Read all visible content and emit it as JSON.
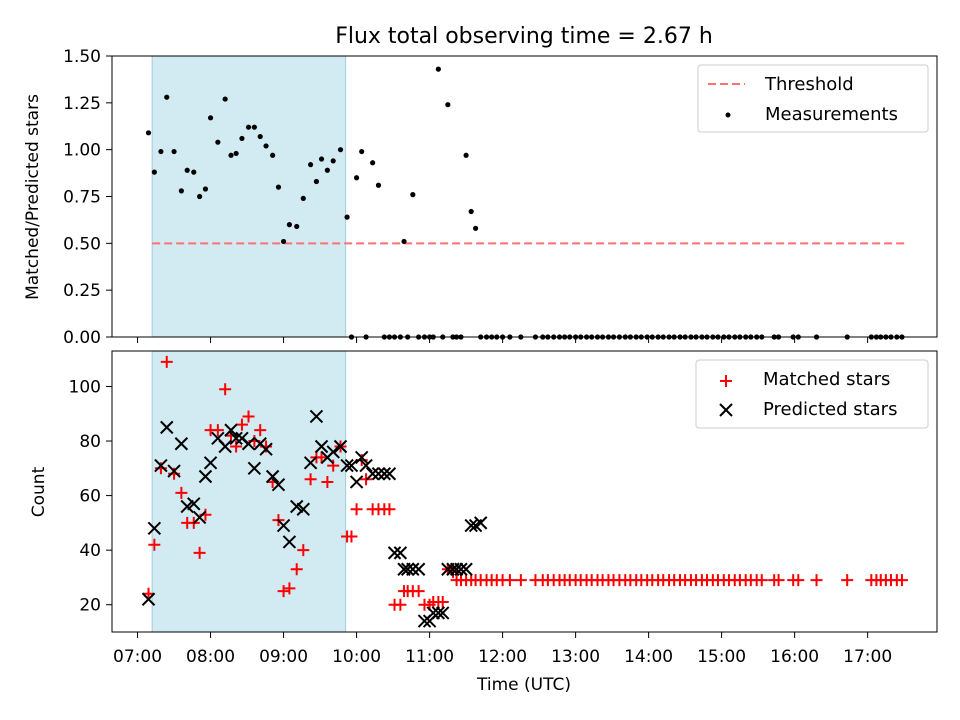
{
  "colors": {
    "shade": "#add8e6",
    "threshold": "#ff6f6f",
    "measurement": "#000000",
    "matched": "#ff0000",
    "predicted": "#000000"
  },
  "chart_data": [
    {
      "type": "scatter",
      "title": "Flux total observing time = 2.67 h",
      "xlabel": "",
      "ylabel": "Matched/Predicted stars",
      "ylim": [
        0,
        1.5
      ],
      "yticks": [
        "0.00",
        "0.25",
        "0.50",
        "0.75",
        "1.00",
        "1.25",
        "1.50"
      ],
      "shaded_span_hours": [
        7.2,
        9.85
      ],
      "threshold": {
        "name": "Threshold",
        "value": 0.5,
        "x_range_hours": [
          7.2,
          17.5
        ]
      },
      "legend": {
        "position": "top-right",
        "entries": [
          "Threshold",
          "Measurements"
        ]
      },
      "series": [
        {
          "name": "Measurements",
          "x_hours": [
            7.15,
            7.23,
            7.32,
            7.4,
            7.5,
            7.6,
            7.68,
            7.77,
            7.85,
            7.93,
            8.0,
            8.1,
            8.2,
            8.28,
            8.35,
            8.43,
            8.52,
            8.6,
            8.68,
            8.76,
            8.85,
            8.93,
            9.0,
            9.08,
            9.18,
            9.27,
            9.37,
            9.45,
            9.52,
            9.6,
            9.68,
            9.78,
            9.87,
            9.93,
            10.0,
            10.07,
            10.13,
            10.22,
            10.3,
            10.38,
            10.45,
            10.52,
            10.6,
            10.65,
            10.7,
            10.77,
            10.85,
            10.93,
            11.0,
            11.05,
            11.12,
            11.18,
            11.25,
            11.32,
            11.37,
            11.43,
            11.5,
            11.57,
            11.63,
            11.7,
            11.78,
            11.85,
            11.92,
            12.0,
            12.1,
            12.25,
            12.45,
            12.55,
            12.62,
            12.7,
            12.78,
            12.85,
            12.92,
            13.0,
            13.07,
            13.15,
            13.22,
            13.3,
            13.37,
            13.45,
            13.52,
            13.6,
            13.68,
            13.75,
            13.83,
            13.9,
            13.98,
            14.05,
            14.13,
            14.2,
            14.28,
            14.35,
            14.43,
            14.5,
            14.58,
            14.65,
            14.73,
            14.8,
            14.88,
            14.95,
            15.03,
            15.1,
            15.18,
            15.25,
            15.33,
            15.4,
            15.48,
            15.55,
            15.72,
            15.78,
            15.98,
            16.05,
            16.3,
            16.72,
            17.05,
            17.12,
            17.18,
            17.25,
            17.32,
            17.4,
            17.47
          ],
          "y": [
            1.09,
            0.88,
            0.99,
            1.28,
            0.99,
            0.78,
            0.89,
            0.88,
            0.75,
            0.79,
            1.17,
            1.04,
            1.27,
            0.97,
            0.98,
            1.06,
            1.12,
            1.12,
            1.07,
            1.02,
            0.97,
            0.8,
            0.51,
            0.6,
            0.59,
            0.74,
            0.92,
            0.83,
            0.95,
            0.89,
            0.94,
            1.0,
            0.64,
            0.0,
            0.85,
            0.99,
            0.0,
            0.93,
            0.81,
            0.0,
            0.0,
            0.0,
            0.0,
            0.51,
            0.0,
            0.76,
            0.0,
            0.0,
            0.0,
            0.0,
            1.43,
            0.0,
            1.24,
            0.0,
            0.0,
            0.0,
            0.97,
            0.67,
            0.58,
            0.0,
            0.0,
            0.0,
            0.0,
            0.0,
            0.0,
            0.0,
            0.0,
            0.0,
            0.0,
            0.0,
            0.0,
            0.0,
            0.0,
            0.0,
            0.0,
            0.0,
            0.0,
            0.0,
            0.0,
            0.0,
            0.0,
            0.0,
            0.0,
            0.0,
            0.0,
            0.0,
            0.0,
            0.0,
            0.0,
            0.0,
            0.0,
            0.0,
            0.0,
            0.0,
            0.0,
            0.0,
            0.0,
            0.0,
            0.0,
            0.0,
            0.0,
            0.0,
            0.0,
            0.0,
            0.0,
            0.0,
            0.0,
            0.0,
            0.0,
            0.0,
            0.0,
            0.0,
            0.0,
            0.0,
            0.0,
            0.0,
            0.0,
            0.0,
            0.0,
            0.0,
            0.0
          ]
        }
      ]
    },
    {
      "type": "scatter",
      "title": "",
      "xlabel": "Time (UTC)",
      "ylabel": "Count",
      "ylim": [
        10,
        113
      ],
      "yticks": [
        "20",
        "40",
        "60",
        "80",
        "100"
      ],
      "xticks": [
        "07:00",
        "08:00",
        "09:00",
        "10:00",
        "11:00",
        "12:00",
        "13:00",
        "14:00",
        "15:00",
        "16:00",
        "17:00"
      ],
      "xlim_hours": [
        6.65,
        17.95
      ],
      "shaded_span_hours": [
        7.2,
        9.85
      ],
      "legend": {
        "position": "top-right",
        "entries": [
          "Matched stars",
          "Predicted stars"
        ]
      },
      "series": [
        {
          "name": "Matched stars",
          "x_hours": [
            7.15,
            7.23,
            7.32,
            7.4,
            7.5,
            7.6,
            7.68,
            7.77,
            7.85,
            7.93,
            8.0,
            8.1,
            8.2,
            8.28,
            8.35,
            8.43,
            8.52,
            8.6,
            8.68,
            8.76,
            8.85,
            8.93,
            9.0,
            9.08,
            9.18,
            9.27,
            9.37,
            9.45,
            9.52,
            9.6,
            9.68,
            9.78,
            9.87,
            9.93,
            10.0,
            10.07,
            10.13,
            10.22,
            10.3,
            10.38,
            10.45,
            10.52,
            10.6,
            10.65,
            10.7,
            10.77,
            10.85,
            10.93,
            11.0,
            11.05,
            11.12,
            11.18,
            11.25,
            11.32,
            11.37,
            11.43,
            11.5,
            11.57,
            11.63,
            11.7,
            11.78,
            11.85,
            11.92,
            12.0,
            12.1,
            12.25,
            12.45,
            12.55,
            12.62,
            12.7,
            12.78,
            12.85,
            12.92,
            13.0,
            13.07,
            13.15,
            13.22,
            13.3,
            13.37,
            13.45,
            13.52,
            13.6,
            13.68,
            13.75,
            13.83,
            13.9,
            13.98,
            14.05,
            14.13,
            14.2,
            14.28,
            14.35,
            14.43,
            14.5,
            14.58,
            14.65,
            14.73,
            14.8,
            14.88,
            14.95,
            15.03,
            15.1,
            15.18,
            15.25,
            15.33,
            15.4,
            15.48,
            15.55,
            15.72,
            15.78,
            15.98,
            16.05,
            16.3,
            16.72,
            17.05,
            17.12,
            17.18,
            17.25,
            17.32,
            17.4,
            17.47
          ],
          "y": [
            24,
            42,
            70,
            109,
            68,
            61,
            50,
            50,
            39,
            53,
            84,
            84,
            99,
            82,
            78,
            86,
            89,
            80,
            84,
            78,
            65,
            51,
            25,
            26,
            33,
            40,
            66,
            74,
            74,
            65,
            71,
            78,
            45,
            45,
            55,
            73,
            66,
            55,
            55,
            55,
            55,
            20,
            20,
            25,
            25,
            25,
            25,
            20,
            20,
            21,
            21,
            21,
            33,
            32,
            29,
            29,
            29,
            29,
            29,
            29,
            29,
            29,
            29,
            29,
            29,
            29,
            29,
            29,
            29,
            29,
            29,
            29,
            29,
            29,
            29,
            29,
            29,
            29,
            29,
            29,
            29,
            29,
            29,
            29,
            29,
            29,
            29,
            29,
            29,
            29,
            29,
            29,
            29,
            29,
            29,
            29,
            29,
            29,
            29,
            29,
            29,
            29,
            29,
            29,
            29,
            29,
            29,
            29,
            29,
            29,
            29,
            29,
            29,
            29,
            29,
            29,
            29,
            29,
            29,
            29,
            29
          ]
        },
        {
          "name": "Predicted stars",
          "x_hours": [
            7.15,
            7.23,
            7.32,
            7.4,
            7.5,
            7.6,
            7.68,
            7.77,
            7.85,
            7.93,
            8.0,
            8.1,
            8.2,
            8.28,
            8.35,
            8.43,
            8.52,
            8.6,
            8.68,
            8.76,
            8.85,
            8.93,
            9.0,
            9.08,
            9.18,
            9.27,
            9.37,
            9.45,
            9.52,
            9.6,
            9.68,
            9.78,
            9.87,
            9.93,
            10.0,
            10.07,
            10.13,
            10.22,
            10.3,
            10.38,
            10.45,
            10.52,
            10.6,
            10.65,
            10.7,
            10.77,
            10.85,
            10.93,
            11.0,
            11.05,
            11.12,
            11.18,
            11.25,
            11.32,
            11.37,
            11.43,
            11.5,
            11.57,
            11.63,
            11.7
          ],
          "y": [
            22,
            48,
            71,
            85,
            69,
            79,
            56,
            57,
            52,
            67,
            72,
            81,
            78,
            84,
            81,
            81,
            79,
            70,
            79,
            77,
            67,
            64,
            49,
            43,
            56,
            55,
            72,
            89,
            78,
            74,
            76,
            78,
            71,
            71,
            65,
            74,
            71,
            68,
            68,
            68,
            68,
            39,
            39,
            33,
            33,
            33,
            33,
            14,
            14,
            17,
            17,
            17,
            33,
            33,
            33,
            33,
            33,
            49,
            49,
            50
          ]
        }
      ]
    }
  ]
}
